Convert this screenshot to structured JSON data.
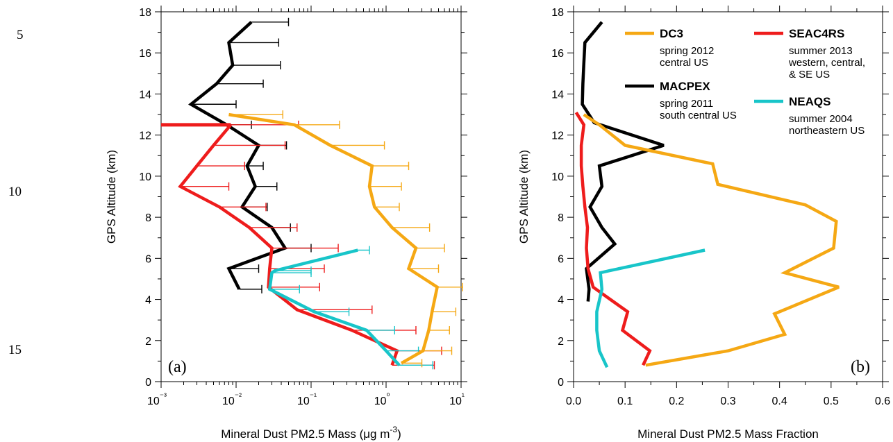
{
  "line_numbers": [
    "5",
    "10",
    "15"
  ],
  "colors": {
    "DC3": "#f5a814",
    "MACPEX": "#000000",
    "SEAC4RS": "#ee1c1c",
    "NEAQS": "#18c5c9"
  },
  "chart_data": [
    {
      "type": "line",
      "panel_label": "(a)",
      "xlabel": "Mineral Dust PM2.5 Mass (μg m⁻³)",
      "ylabel": "GPS Altitude (km)",
      "xscale": "log",
      "xlim": [
        0.001,
        10
      ],
      "ylim": [
        0,
        18
      ],
      "x_ticks": [
        0.001,
        0.01,
        0.1,
        1,
        10
      ],
      "x_tick_labels": [
        "10⁻³",
        "10⁻²",
        "10⁻¹",
        "10⁰",
        "10¹"
      ],
      "y_ticks": [
        0,
        2,
        4,
        6,
        8,
        10,
        12,
        14,
        16,
        18
      ],
      "y_tick_labels": [
        "0",
        "2",
        "4",
        "6",
        "8",
        "10",
        "12",
        "14",
        "16",
        "18"
      ],
      "grid": false,
      "error_bars": "one-sided, positive x direction",
      "series": [
        {
          "key": "MACPEX",
          "y": [
            17.5,
            16.5,
            15.4,
            14.5,
            13.5,
            12.5,
            11.5,
            10.5,
            9.5,
            8.5,
            7.5,
            6.5,
            5.5,
            4.5
          ],
          "x": [
            0.016,
            0.008,
            0.009,
            0.0055,
            0.0025,
            0.0075,
            0.02,
            0.014,
            0.018,
            0.012,
            0.03,
            0.045,
            0.008,
            0.011
          ],
          "err_hi": [
            0.05,
            0.037,
            0.039,
            0.023,
            0.01,
            0.016,
            0.047,
            0.023,
            0.035,
            0.026,
            0.053,
            0.1,
            0.02,
            0.022
          ]
        },
        {
          "key": "SEAC4RS",
          "y": [
            12.5,
            11.5,
            10.5,
            9.5,
            8.5,
            7.5,
            6.5,
            5.5,
            4.6,
            3.5,
            2.5,
            1.5,
            0.8
          ],
          "x": [
            0.0085,
            0.005,
            0.003,
            0.0018,
            0.006,
            0.015,
            0.03,
            0.028,
            0.027,
            0.065,
            0.35,
            1.4,
            1.2
          ],
          "err_hi": [
            0.068,
            0.045,
            0.013,
            0.008,
            0.025,
            0.065,
            0.23,
            0.15,
            0.13,
            0.65,
            2.5,
            5.5,
            4.4
          ],
          "thick_segment": {
            "y": 12.5,
            "x_from": 0.001,
            "x_to": 0.0085
          }
        },
        {
          "key": "NEAQS",
          "y": [
            6.4,
            5.4,
            5.3,
            4.5,
            3.4,
            2.5,
            1.5,
            0.8
          ],
          "x": [
            0.42,
            0.033,
            0.03,
            0.028,
            0.11,
            0.55,
            1.0,
            1.5
          ],
          "err_hi": [
            0.6,
            0.1,
            0.1,
            0.07,
            0.32,
            1.3,
            2.7,
            4.2
          ]
        },
        {
          "key": "DC3",
          "y": [
            13.0,
            12.5,
            11.5,
            10.5,
            9.5,
            8.5,
            7.5,
            6.5,
            5.5,
            4.6,
            3.4,
            2.5,
            1.5,
            0.9
          ],
          "x": [
            0.008,
            0.06,
            0.18,
            0.65,
            0.6,
            0.7,
            1.2,
            2.5,
            2.0,
            4.8,
            4.1,
            3.7,
            3.1,
            1.6
          ],
          "err_hi": [
            0.042,
            0.24,
            0.95,
            2.0,
            1.6,
            1.5,
            3.8,
            6.0,
            5.0,
            10.5,
            8.5,
            7.0,
            7.5,
            3.0
          ]
        }
      ]
    },
    {
      "type": "line",
      "panel_label": "(b)",
      "xlabel": "Mineral Dust PM2.5 Mass Fraction",
      "ylabel": "GPS Altitude (km)",
      "xlim": [
        0,
        0.6
      ],
      "ylim": [
        0,
        18
      ],
      "x_ticks": [
        0.0,
        0.1,
        0.2,
        0.3,
        0.4,
        0.5,
        0.6
      ],
      "x_tick_labels": [
        "0.0",
        "0.1",
        "0.2",
        "0.3",
        "0.4",
        "0.5",
        "0.6"
      ],
      "y_ticks": [
        0,
        2,
        4,
        6,
        8,
        10,
        12,
        14,
        16,
        18
      ],
      "y_tick_labels": [
        "0",
        "2",
        "4",
        "6",
        "8",
        "10",
        "12",
        "14",
        "16",
        "18"
      ],
      "grid": false,
      "legend_position": "top",
      "legend": [
        {
          "key": "DC3",
          "name": "DC3",
          "desc": [
            "spring 2012",
            "central US"
          ]
        },
        {
          "key": "SEAC4RS",
          "name": "SEAC4RS",
          "desc": [
            "summer 2013",
            "western, central,",
            "& SE US"
          ]
        },
        {
          "key": "MACPEX",
          "name": "MACPEX",
          "desc": [
            "spring 2011",
            "south central US"
          ]
        },
        {
          "key": "NEAQS",
          "name": "NEAQS",
          "desc": [
            "summer 2004",
            "northeastern US"
          ]
        }
      ],
      "series": [
        {
          "key": "MACPEX",
          "y": [
            17.5,
            16.5,
            15.5,
            14.5,
            13.5,
            12.6,
            11.5,
            10.5,
            9.5,
            8.5,
            7.5,
            6.7,
            5.5,
            4.5,
            3.9
          ],
          "x": [
            0.055,
            0.022,
            0.02,
            0.018,
            0.017,
            0.04,
            0.175,
            0.05,
            0.055,
            0.032,
            0.055,
            0.08,
            0.025,
            0.03,
            0.028
          ]
        },
        {
          "key": "DC3",
          "y": [
            13.0,
            12.5,
            11.5,
            10.6,
            9.6,
            8.6,
            7.8,
            6.5,
            5.3,
            4.6,
            3.3,
            2.3,
            1.5,
            0.8
          ],
          "x": [
            0.02,
            0.05,
            0.1,
            0.27,
            0.28,
            0.45,
            0.51,
            0.505,
            0.41,
            0.515,
            0.39,
            0.41,
            0.3,
            0.14
          ]
        },
        {
          "key": "SEAC4RS",
          "y": [
            13.1,
            12.5,
            11.5,
            10.5,
            9.5,
            8.5,
            7.5,
            6.5,
            5.5,
            4.6,
            4.2,
            3.4,
            2.5,
            1.5,
            0.8
          ],
          "x": [
            0.005,
            0.02,
            0.015,
            0.015,
            0.018,
            0.022,
            0.027,
            0.025,
            0.028,
            0.038,
            0.06,
            0.105,
            0.095,
            0.148,
            0.135
          ]
        },
        {
          "key": "NEAQS",
          "y": [
            6.4,
            5.4,
            5.3,
            4.5,
            3.4,
            2.5,
            1.5,
            0.7
          ],
          "x": [
            0.255,
            0.07,
            0.052,
            0.055,
            0.045,
            0.045,
            0.05,
            0.065
          ]
        }
      ]
    }
  ]
}
